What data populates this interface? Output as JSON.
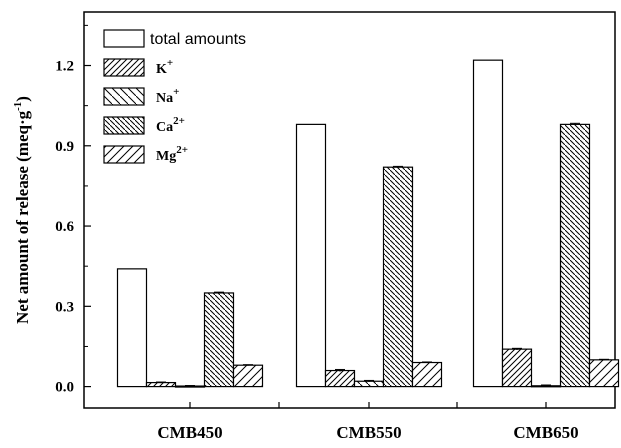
{
  "chart_data": {
    "type": "bar",
    "categories": [
      "CMB450",
      "CMB550",
      "CMB650"
    ],
    "series": [
      {
        "name": "total amounts",
        "values": [
          0.44,
          0.98,
          1.22
        ],
        "errors": [
          0.0,
          0.0,
          0.0
        ],
        "pattern": "none"
      },
      {
        "name": "K",
        "sup": "+",
        "values": [
          0.015,
          0.06,
          0.14
        ],
        "errors": [
          0.002,
          0.004,
          0.003
        ],
        "pattern": "diag-fwd"
      },
      {
        "name": "Na",
        "sup": "+",
        "values": [
          0.002,
          0.02,
          0.003
        ],
        "errors": [
          0.002,
          0.003,
          0.003
        ],
        "pattern": "diag-back"
      },
      {
        "name": "Ca",
        "sup": "2+",
        "values": [
          0.35,
          0.82,
          0.98
        ],
        "errors": [
          0.003,
          0.003,
          0.004
        ],
        "pattern": "diag-back-dense"
      },
      {
        "name": "Mg",
        "sup": "2+",
        "values": [
          0.08,
          0.09,
          0.1
        ],
        "errors": [
          0.002,
          0.002,
          0.002
        ],
        "pattern": "diag-fwd-sparse"
      }
    ],
    "ylabel_main": "Net amount of release (meq·g",
    "ylabel_sup": "-1",
    "ylabel_end": ")",
    "ylim": [
      -0.08,
      1.4
    ],
    "yticks": [
      "0.0",
      "0.3",
      "0.6",
      "0.9",
      "1.2"
    ],
    "ytick_values": [
      0.0,
      0.3,
      0.6,
      0.9,
      1.2
    ],
    "legend_position": "top-left",
    "grid": false
  }
}
